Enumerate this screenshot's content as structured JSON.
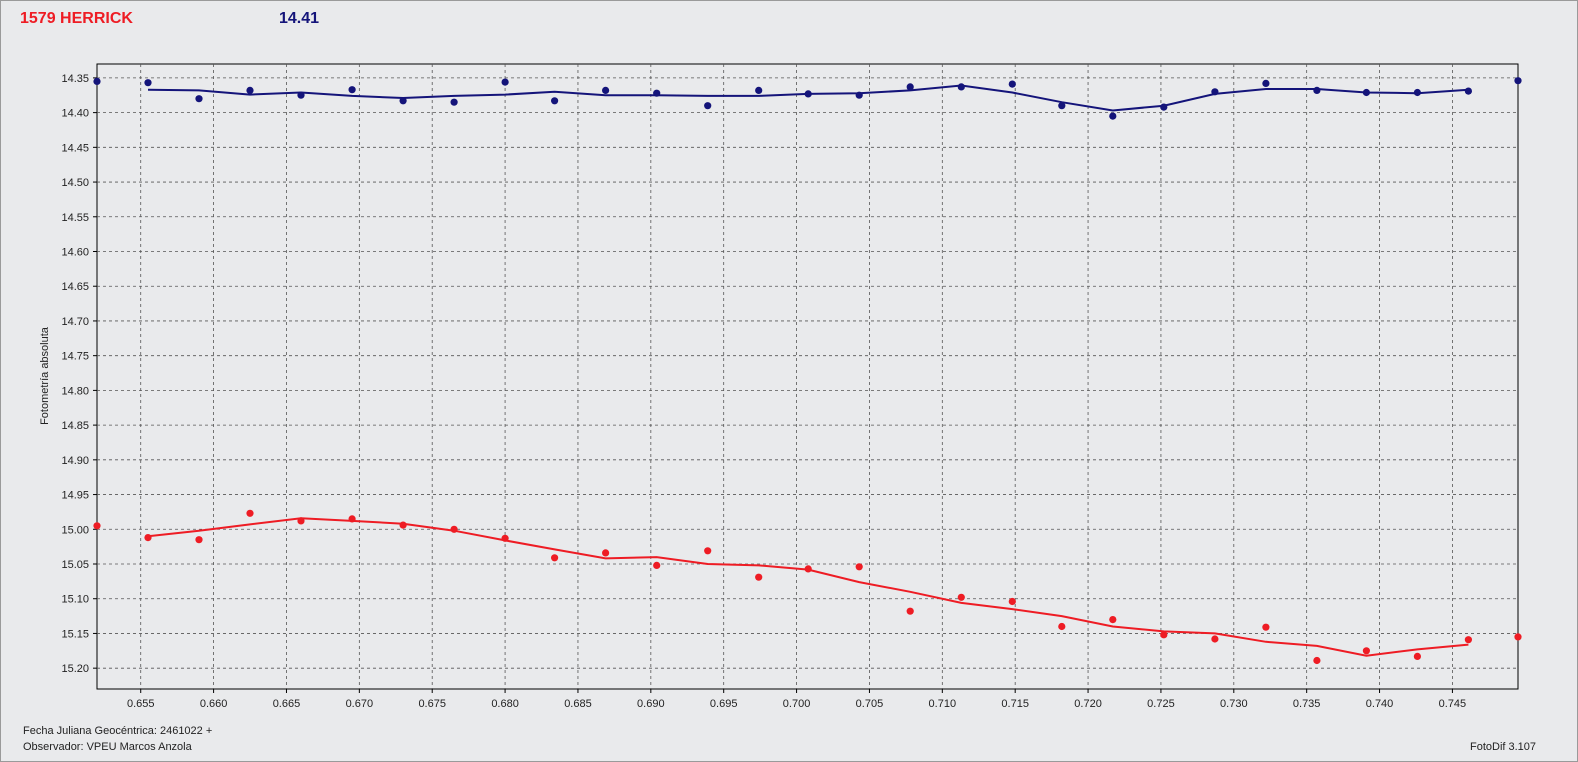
{
  "header": {
    "object_name": "1579 HERRICK",
    "magnitude": "14.41"
  },
  "footer": {
    "julian_date": "Fecha Juliana Geocéntrica: 2461022 +",
    "observer": "Observador: VPEU Marcos Anzola",
    "version": "FotoDif 3.107"
  },
  "colors": {
    "target": "#ee1c24",
    "comparison": "#14147a",
    "background": "#e9eaec",
    "grid": "#555555"
  },
  "chart_data": {
    "type": "scatter",
    "ylabel": "Fotometría absoluta",
    "xlabel": "",
    "xlim": [
      0.652,
      0.7495
    ],
    "ylim": [
      14.33,
      15.23
    ],
    "y_inverted": true,
    "grid": true,
    "x_ticks": [
      "0.655",
      "0.660",
      "0.665",
      "0.670",
      "0.675",
      "0.680",
      "0.685",
      "0.690",
      "0.695",
      "0.700",
      "0.705",
      "0.710",
      "0.715",
      "0.720",
      "0.725",
      "0.730",
      "0.735",
      "0.740",
      "0.745"
    ],
    "y_ticks": [
      "14.35",
      "14.40",
      "14.45",
      "14.50",
      "14.55",
      "14.60",
      "14.65",
      "14.70",
      "14.75",
      "14.80",
      "14.85",
      "14.90",
      "14.95",
      "15.00",
      "15.05",
      "15.10",
      "15.15",
      "15.20"
    ],
    "series": [
      {
        "color": "#14147a",
        "x": [
          0.652,
          0.6555,
          0.659,
          0.6625,
          0.666,
          0.6695,
          0.673,
          0.6765,
          0.68,
          0.6834,
          0.6869,
          0.6904,
          0.6939,
          0.6974,
          0.7008,
          0.7043,
          0.7078,
          0.7113,
          0.7148,
          0.7182,
          0.7217,
          0.7252,
          0.7287,
          0.7322,
          0.7357,
          0.7391,
          0.7426,
          0.7461,
          0.7495
        ],
        "y": [
          14.355,
          14.357,
          14.38,
          14.368,
          14.375,
          14.367,
          14.383,
          14.385,
          14.356,
          14.383,
          14.368,
          14.372,
          14.39,
          14.368,
          14.373,
          14.375,
          14.363,
          14.363,
          14.359,
          14.39,
          14.405,
          14.392,
          14.37,
          14.358,
          14.368,
          14.371,
          14.371,
          14.369,
          14.354
        ],
        "fit": [
          null,
          14.367,
          14.368,
          14.374,
          14.371,
          14.376,
          14.379,
          14.376,
          14.374,
          14.37,
          14.375,
          14.375,
          14.376,
          14.376,
          14.373,
          14.372,
          14.368,
          14.361,
          14.371,
          14.385,
          14.397,
          14.39,
          14.373,
          14.366,
          14.366,
          14.371,
          14.372,
          14.367,
          null
        ]
      },
      {
        "color": "#ee1c24",
        "x": [
          0.652,
          0.6555,
          0.659,
          0.6625,
          0.666,
          0.6695,
          0.673,
          0.6765,
          0.68,
          0.6834,
          0.6869,
          0.6904,
          0.6939,
          0.6974,
          0.7008,
          0.7043,
          0.7078,
          0.7113,
          0.7148,
          0.7182,
          0.7217,
          0.7252,
          0.7287,
          0.7322,
          0.7357,
          0.7391,
          0.7426,
          0.7461,
          0.7495
        ],
        "y": [
          14.995,
          15.012,
          15.015,
          14.977,
          14.988,
          14.985,
          14.994,
          15.0,
          15.013,
          15.041,
          15.034,
          15.052,
          15.031,
          15.069,
          15.057,
          15.054,
          15.118,
          15.098,
          15.104,
          15.14,
          15.13,
          15.152,
          15.158,
          15.141,
          15.189,
          15.175,
          15.183,
          15.159,
          15.155
        ],
        "fit": [
          null,
          15.01,
          15.002,
          14.993,
          14.984,
          14.988,
          14.992,
          15.002,
          15.016,
          15.029,
          15.042,
          15.04,
          15.05,
          15.052,
          15.058,
          15.076,
          15.09,
          15.106,
          15.115,
          15.125,
          15.14,
          15.147,
          15.15,
          15.162,
          15.168,
          15.182,
          15.173,
          15.166,
          null
        ]
      }
    ]
  }
}
